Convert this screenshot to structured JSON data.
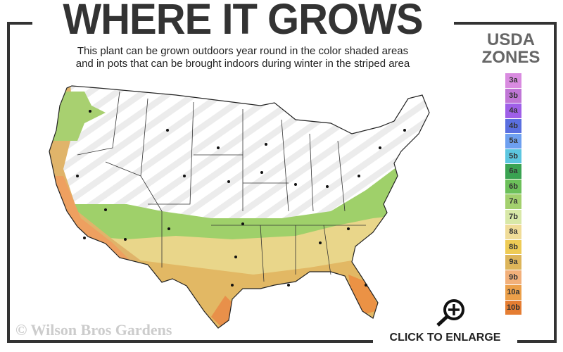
{
  "header": {
    "title": "WHERE IT GROWS",
    "subtitle_line1": "This plant can be grown outdoors year round in the color shaded areas",
    "subtitle_line2": "and in pots that can be brought indoors during winter in the striped area"
  },
  "legend": {
    "title_line1": "USDA",
    "title_line2": "ZONES",
    "zones": [
      {
        "label": "3a",
        "color": "#d98be0"
      },
      {
        "label": "3b",
        "color": "#c076d6"
      },
      {
        "label": "4a",
        "color": "#9f5fe8"
      },
      {
        "label": "4b",
        "color": "#5a6fe0"
      },
      {
        "label": "5a",
        "color": "#6ea0f0"
      },
      {
        "label": "5b",
        "color": "#5cc6e0"
      },
      {
        "label": "6a",
        "color": "#3aa352"
      },
      {
        "label": "6b",
        "color": "#6cc05a"
      },
      {
        "label": "7a",
        "color": "#a3d06e"
      },
      {
        "label": "7b",
        "color": "#d8e8a8"
      },
      {
        "label": "8a",
        "color": "#f0dc98"
      },
      {
        "label": "8b",
        "color": "#eecb55"
      },
      {
        "label": "9a",
        "color": "#ddb55a"
      },
      {
        "label": "9b",
        "color": "#f2b07a"
      },
      {
        "label": "10a",
        "color": "#eca04a"
      },
      {
        "label": "10b",
        "color": "#e57d32"
      }
    ]
  },
  "map": {
    "outdoor_zones": "color shaded",
    "indoor_pots": "striped"
  },
  "footer": {
    "copyright": "© Wilson Bros Gardens",
    "enlarge_label": "CLICK TO ENLARGE",
    "enlarge_icon": "magnifier-plus-icon"
  }
}
